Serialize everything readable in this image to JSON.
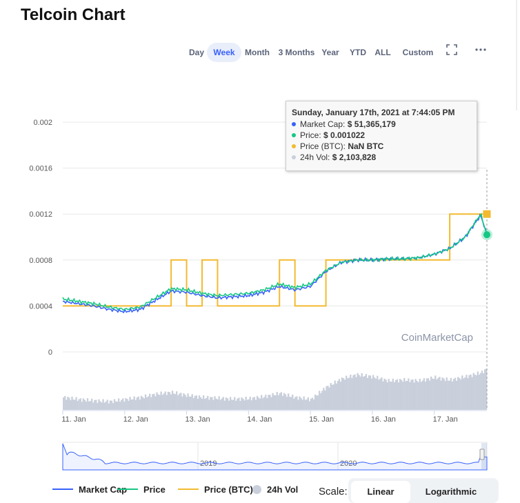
{
  "title": "Telcoin Chart",
  "ranges": [
    {
      "label": "Day",
      "active": false
    },
    {
      "label": "Week",
      "active": true
    },
    {
      "label": "Month",
      "active": false
    },
    {
      "label": "3 Months",
      "active": false
    },
    {
      "label": "Year",
      "active": false
    },
    {
      "label": "YTD",
      "active": false
    },
    {
      "label": "ALL",
      "active": false
    },
    {
      "label": "Custom",
      "active": false
    }
  ],
  "tools": {
    "fullscreen_icon": "fullscreen-icon",
    "menu_icon": "more-icon"
  },
  "tooltip": {
    "header": "Sunday, January 17th, 2021 at 7:44:05 PM",
    "rows": [
      {
        "label": "Market Cap:",
        "value": "$ 51,365,179",
        "color": "#3861fb"
      },
      {
        "label": "Price:",
        "value": "$ 0.001022",
        "color": "#16c784"
      },
      {
        "label": "Price (BTC):",
        "value": "NaN BTC",
        "color": "#f3ba2f"
      },
      {
        "label": "24h Vol:",
        "value": "$ 2,103,828",
        "color": "#c9cfdb"
      }
    ]
  },
  "watermark": "CoinMarketCap",
  "legend": [
    {
      "label": "Market Cap",
      "color": "#3861fb",
      "kind": "line"
    },
    {
      "label": "Price",
      "color": "#16c784",
      "kind": "line"
    },
    {
      "label": "Price (BTC)",
      "color": "#f3ba2f",
      "kind": "line"
    },
    {
      "label": "24h Vol",
      "color": "#c9cfdb",
      "kind": "circle"
    }
  ],
  "scale": {
    "label": "Scale:",
    "options": [
      {
        "label": "Linear",
        "active": true
      },
      {
        "label": "Logarithmic",
        "active": false
      }
    ]
  },
  "colors": {
    "market_cap": "#3861fb",
    "price": "#16c784",
    "price_btc": "#f3ba2f",
    "volume": "#c9cfdb",
    "grid": "#e8e8e8"
  },
  "chart_data": {
    "type": "line",
    "title": "Telcoin Chart",
    "y_ticks": [
      "0.002",
      "0.0016",
      "0.0012",
      "0.0008",
      "0.0004",
      "0"
    ],
    "ylim": [
      0,
      0.002
    ],
    "x_ticks": [
      "11. Jan",
      "12. Jan",
      "13. Jan",
      "14. Jan",
      "15. Jan",
      "16. Jan",
      "17. Jan"
    ],
    "x": [
      0,
      0.25,
      0.5,
      0.75,
      1,
      1.25,
      1.5,
      1.75,
      2,
      2.25,
      2.5,
      2.75,
      3,
      3.25,
      3.5,
      3.75,
      4,
      4.25,
      4.5,
      4.75,
      5,
      5.25,
      5.5,
      5.75,
      6,
      6.25,
      6.5,
      6.75,
      6.85
    ],
    "series": [
      {
        "name": "Price",
        "values": [
          0.00046,
          0.00044,
          0.00042,
          0.00039,
          0.00037,
          0.00039,
          0.00047,
          0.00055,
          0.00054,
          0.00051,
          0.00049,
          0.0005,
          0.00051,
          0.00054,
          0.00059,
          0.00056,
          0.00059,
          0.00071,
          0.00078,
          0.0008,
          0.0008,
          0.00081,
          0.00081,
          0.00082,
          0.00085,
          0.0009,
          0.001,
          0.0012,
          0.00102
        ]
      },
      {
        "name": "Market Cap",
        "values": [
          0.00044,
          0.00042,
          0.0004,
          0.00037,
          0.00035,
          0.00037,
          0.00045,
          0.00053,
          0.00052,
          0.00049,
          0.00047,
          0.00048,
          0.00049,
          0.00052,
          0.00057,
          0.00054,
          0.00057,
          0.0007,
          0.00078,
          0.0008,
          0.0008,
          0.00081,
          0.00081,
          0.00082,
          0.00085,
          0.0009,
          0.001,
          0.00119,
          0.00102
        ]
      },
      {
        "name": "Price (BTC)",
        "values": [
          0.0004,
          0.0004,
          0.0004,
          0.0004,
          0.0004,
          0.0004,
          0.0004,
          0.0008,
          0.0004,
          0.0008,
          0.0004,
          0.0004,
          0.0004,
          0.0004,
          0.0008,
          0.0004,
          0.0004,
          0.0008,
          0.0008,
          0.0008,
          0.0008,
          0.0008,
          0.0008,
          0.0008,
          0.0008,
          0.0012,
          0.0012,
          0.0012,
          0.0012
        ]
      },
      {
        "name": "24h Vol",
        "values": [
          0.3,
          0.25,
          0.22,
          0.2,
          0.25,
          0.3,
          0.38,
          0.42,
          0.35,
          0.3,
          0.28,
          0.26,
          0.27,
          0.32,
          0.4,
          0.3,
          0.25,
          0.55,
          0.75,
          0.85,
          0.8,
          0.7,
          0.72,
          0.7,
          0.78,
          0.72,
          0.8,
          0.9,
          1.0
        ]
      }
    ],
    "navigator": {
      "labels": [
        "2019",
        "2020"
      ]
    },
    "grid": true,
    "legend_position": "bottom"
  }
}
